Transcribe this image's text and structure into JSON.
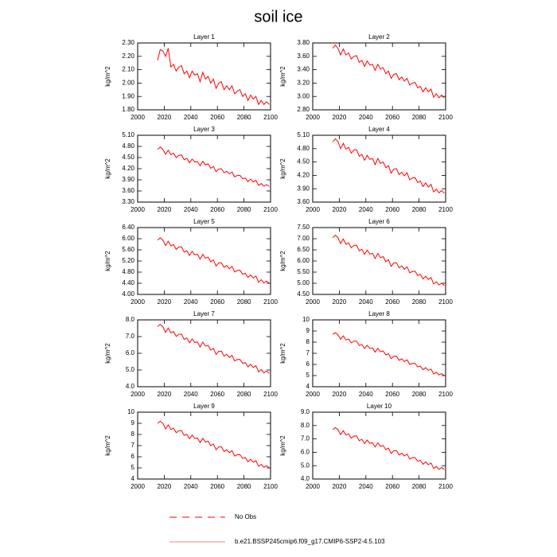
{
  "title": "soil ice",
  "legend": [
    {
      "name": "No Obs",
      "color": "#ff0000",
      "dash": true
    },
    {
      "name": "b.e21.BSSP245cmip6.f09_g17.CMIP6-SSP2-4.5.103",
      "color": "#ff0000",
      "dash": false
    }
  ],
  "chart_data": [
    {
      "type": "line",
      "title": "Layer 1",
      "y_label": "kg/m^2",
      "color": "#ff0000",
      "x": [
        2015,
        2017,
        2019,
        2021,
        2023,
        2025,
        2027,
        2029,
        2031,
        2033,
        2035,
        2037,
        2039,
        2041,
        2043,
        2045,
        2047,
        2049,
        2051,
        2053,
        2055,
        2057,
        2059,
        2061,
        2063,
        2065,
        2067,
        2069,
        2071,
        2073,
        2075,
        2077,
        2079,
        2081,
        2083,
        2085,
        2087,
        2089,
        2091,
        2093,
        2095,
        2097,
        2099
      ],
      "values": [
        2.17,
        2.25,
        2.24,
        2.2,
        2.26,
        2.12,
        2.14,
        2.09,
        2.12,
        2.13,
        2.07,
        2.09,
        2.04,
        2.09,
        2.06,
        2.07,
        2.01,
        2.08,
        2.03,
        2.05,
        2.0,
        2.03,
        1.96,
        2.0,
        2.01,
        1.95,
        1.98,
        1.95,
        1.98,
        1.92,
        1.94,
        1.95,
        1.9,
        1.92,
        1.87,
        1.91,
        1.88,
        1.9,
        1.84,
        1.87,
        1.84,
        1.86,
        1.84
      ],
      "xlim": [
        2000,
        2100
      ],
      "xticks": [
        2000,
        2020,
        2040,
        2060,
        2080,
        2100
      ],
      "ylim": [
        1.8,
        2.3
      ],
      "yticks": [
        {
          "value": 1.8,
          "label": "1.80"
        },
        {
          "value": 1.9,
          "label": "1.90"
        },
        {
          "value": 2.0,
          "label": "2.00"
        },
        {
          "value": 2.1,
          "label": "2.10"
        },
        {
          "value": 2.2,
          "label": "2.20"
        },
        {
          "value": 2.3,
          "label": "2.30"
        }
      ]
    },
    {
      "type": "line",
      "title": "Layer 2",
      "y_label": "kg/m^2",
      "color": "#ff0000",
      "x": [
        2015,
        2017,
        2019,
        2021,
        2023,
        2025,
        2027,
        2029,
        2031,
        2033,
        2035,
        2037,
        2039,
        2041,
        2043,
        2045,
        2047,
        2049,
        2051,
        2053,
        2055,
        2057,
        2059,
        2061,
        2063,
        2065,
        2067,
        2069,
        2071,
        2073,
        2075,
        2077,
        2079,
        2081,
        2083,
        2085,
        2087,
        2089,
        2091,
        2093,
        2095,
        2097,
        2099
      ],
      "values": [
        3.72,
        3.77,
        3.72,
        3.62,
        3.71,
        3.62,
        3.65,
        3.56,
        3.6,
        3.61,
        3.51,
        3.54,
        3.45,
        3.53,
        3.47,
        3.48,
        3.39,
        3.48,
        3.41,
        3.43,
        3.34,
        3.38,
        3.27,
        3.33,
        3.34,
        3.25,
        3.29,
        3.23,
        3.27,
        3.17,
        3.2,
        3.21,
        3.13,
        3.15,
        3.07,
        3.13,
        3.07,
        3.11,
        2.99,
        3.04,
        2.98,
        3.02,
        2.98
      ],
      "xlim": [
        2000,
        2100
      ],
      "xticks": [
        2000,
        2020,
        2040,
        2060,
        2080,
        2100
      ],
      "ylim": [
        2.8,
        3.8
      ],
      "yticks": [
        {
          "value": 2.8,
          "label": "2.80"
        },
        {
          "value": 3.0,
          "label": "3.00"
        },
        {
          "value": 3.2,
          "label": "3.20"
        },
        {
          "value": 3.4,
          "label": "3.40"
        },
        {
          "value": 3.6,
          "label": "3.60"
        },
        {
          "value": 3.8,
          "label": "3.80"
        }
      ]
    },
    {
      "type": "line",
      "title": "Layer 3",
      "y_label": "kg/m^2",
      "color": "#ff0000",
      "x": [
        2015,
        2017,
        2019,
        2021,
        2023,
        2025,
        2027,
        2029,
        2031,
        2033,
        2035,
        2037,
        2039,
        2041,
        2043,
        2045,
        2047,
        2049,
        2051,
        2053,
        2055,
        2057,
        2059,
        2061,
        2063,
        2065,
        2067,
        2069,
        2071,
        2073,
        2075,
        2077,
        2079,
        2081,
        2083,
        2085,
        2087,
        2089,
        2091,
        2093,
        2095,
        2097,
        2099
      ],
      "values": [
        4.72,
        4.78,
        4.72,
        4.59,
        4.7,
        4.58,
        4.62,
        4.5,
        4.56,
        4.57,
        4.44,
        4.48,
        4.36,
        4.46,
        4.38,
        4.39,
        4.28,
        4.4,
        4.3,
        4.33,
        4.21,
        4.26,
        4.12,
        4.19,
        4.2,
        4.09,
        4.13,
        4.06,
        4.11,
        3.98,
        4.02,
        4.02,
        3.93,
        3.95,
        3.85,
        3.92,
        3.84,
        3.89,
        3.75,
        3.8,
        3.73,
        3.77,
        3.72
      ],
      "xlim": [
        2000,
        2100
      ],
      "xticks": [
        2000,
        2020,
        2040,
        2060,
        2080,
        2100
      ],
      "ylim": [
        3.3,
        5.1
      ],
      "yticks": [
        {
          "value": 3.3,
          "label": "3.30"
        },
        {
          "value": 3.6,
          "label": "3.60"
        },
        {
          "value": 3.9,
          "label": "3.90"
        },
        {
          "value": 4.2,
          "label": "4.20"
        },
        {
          "value": 4.5,
          "label": "4.50"
        },
        {
          "value": 4.8,
          "label": "4.80"
        },
        {
          "value": 5.1,
          "label": "5.10"
        }
      ]
    },
    {
      "type": "line",
      "title": "Layer 4",
      "y_label": "kg/m^2",
      "color": "#ff0000",
      "x": [
        2015,
        2017,
        2019,
        2021,
        2023,
        2025,
        2027,
        2029,
        2031,
        2033,
        2035,
        2037,
        2039,
        2041,
        2043,
        2045,
        2047,
        2049,
        2051,
        2053,
        2055,
        2057,
        2059,
        2061,
        2063,
        2065,
        2067,
        2069,
        2071,
        2073,
        2075,
        2077,
        2079,
        2081,
        2083,
        2085,
        2087,
        2089,
        2091,
        2093,
        2095,
        2097,
        2099
      ],
      "values": [
        4.95,
        5.02,
        4.96,
        4.8,
        4.92,
        4.79,
        4.83,
        4.7,
        4.77,
        4.78,
        4.63,
        4.67,
        4.54,
        4.65,
        4.56,
        4.58,
        4.44,
        4.58,
        4.47,
        4.5,
        4.37,
        4.42,
        4.25,
        4.34,
        4.35,
        4.22,
        4.27,
        4.19,
        4.26,
        4.1,
        4.14,
        4.15,
        4.04,
        4.07,
        3.95,
        4.03,
        3.94,
        4.0,
        3.83,
        3.89,
        3.81,
        3.86,
        3.8
      ],
      "xlim": [
        2000,
        2100
      ],
      "xticks": [
        2000,
        2020,
        2040,
        2060,
        2080,
        2100
      ],
      "ylim": [
        3.6,
        5.1
      ],
      "yticks": [
        {
          "value": 3.6,
          "label": "3.60"
        },
        {
          "value": 3.9,
          "label": "3.90"
        },
        {
          "value": 4.2,
          "label": "4.20"
        },
        {
          "value": 4.5,
          "label": "4.50"
        },
        {
          "value": 4.8,
          "label": "4.80"
        },
        {
          "value": 5.1,
          "label": "5.10"
        }
      ]
    },
    {
      "type": "line",
      "title": "Layer 5",
      "y_label": "kg/m^2",
      "color": "#ff0000",
      "x": [
        2015,
        2017,
        2019,
        2021,
        2023,
        2025,
        2027,
        2029,
        2031,
        2033,
        2035,
        2037,
        2039,
        2041,
        2043,
        2045,
        2047,
        2049,
        2051,
        2053,
        2055,
        2057,
        2059,
        2061,
        2063,
        2065,
        2067,
        2069,
        2071,
        2073,
        2075,
        2077,
        2079,
        2081,
        2083,
        2085,
        2087,
        2089,
        2091,
        2093,
        2095,
        2097,
        2099
      ],
      "values": [
        5.95,
        6.03,
        5.95,
        5.75,
        5.91,
        5.74,
        5.79,
        5.62,
        5.7,
        5.71,
        5.52,
        5.57,
        5.4,
        5.55,
        5.42,
        5.44,
        5.27,
        5.44,
        5.3,
        5.34,
        5.17,
        5.24,
        5.02,
        5.13,
        5.14,
        4.97,
        5.04,
        4.92,
        5.01,
        4.81,
        4.86,
        4.87,
        4.72,
        4.76,
        4.61,
        4.7,
        4.59,
        4.66,
        4.44,
        4.53,
        4.41,
        4.48,
        4.4
      ],
      "xlim": [
        2000,
        2100
      ],
      "xticks": [
        2000,
        2020,
        2040,
        2060,
        2080,
        2100
      ],
      "ylim": [
        4.0,
        6.4
      ],
      "yticks": [
        {
          "value": 4.0,
          "label": "4.00"
        },
        {
          "value": 4.4,
          "label": "4.40"
        },
        {
          "value": 4.8,
          "label": "4.80"
        },
        {
          "value": 5.2,
          "label": "5.20"
        },
        {
          "value": 5.6,
          "label": "5.60"
        },
        {
          "value": 6.0,
          "label": "6.00"
        },
        {
          "value": 6.4,
          "label": "6.40"
        }
      ]
    },
    {
      "type": "line",
      "title": "Layer 6",
      "y_label": "kg/m^2",
      "color": "#ff0000",
      "x": [
        2015,
        2017,
        2019,
        2021,
        2023,
        2025,
        2027,
        2029,
        2031,
        2033,
        2035,
        2037,
        2039,
        2041,
        2043,
        2045,
        2047,
        2049,
        2051,
        2053,
        2055,
        2057,
        2059,
        2061,
        2063,
        2065,
        2067,
        2069,
        2071,
        2073,
        2075,
        2077,
        2079,
        2081,
        2083,
        2085,
        2087,
        2089,
        2091,
        2093,
        2095,
        2097,
        2099
      ],
      "values": [
        7.05,
        7.16,
        7.05,
        6.78,
        6.99,
        6.75,
        6.82,
        6.59,
        6.7,
        6.71,
        6.46,
        6.53,
        6.3,
        6.49,
        6.31,
        6.34,
        6.11,
        6.34,
        6.15,
        6.2,
        5.97,
        6.06,
        5.76,
        5.91,
        5.92,
        5.69,
        5.78,
        5.63,
        5.74,
        5.47,
        5.53,
        5.54,
        5.35,
        5.4,
        5.19,
        5.32,
        5.17,
        5.26,
        4.97,
        5.07,
        4.92,
        5.01,
        4.9
      ],
      "xlim": [
        2000,
        2100
      ],
      "xticks": [
        2000,
        2020,
        2040,
        2060,
        2080,
        2100
      ],
      "ylim": [
        4.5,
        7.5
      ],
      "yticks": [
        {
          "value": 4.5,
          "label": "4.50"
        },
        {
          "value": 5.0,
          "label": "5.00"
        },
        {
          "value": 5.5,
          "label": "5.50"
        },
        {
          "value": 6.0,
          "label": "6.00"
        },
        {
          "value": 6.5,
          "label": "6.50"
        },
        {
          "value": 7.0,
          "label": "7.00"
        },
        {
          "value": 7.5,
          "label": "7.50"
        }
      ]
    },
    {
      "type": "line",
      "title": "Layer 7",
      "y_label": "kg/m^2",
      "color": "#ff0000",
      "x": [
        2015,
        2017,
        2019,
        2021,
        2023,
        2025,
        2027,
        2029,
        2031,
        2033,
        2035,
        2037,
        2039,
        2041,
        2043,
        2045,
        2047,
        2049,
        2051,
        2053,
        2055,
        2057,
        2059,
        2061,
        2063,
        2065,
        2067,
        2069,
        2071,
        2073,
        2075,
        2077,
        2079,
        2081,
        2083,
        2085,
        2087,
        2089,
        2091,
        2093,
        2095,
        2097,
        2099
      ],
      "values": [
        7.6,
        7.73,
        7.59,
        7.25,
        7.51,
        7.22,
        7.3,
        7.01,
        7.14,
        7.15,
        6.83,
        6.92,
        6.63,
        6.86,
        6.64,
        6.68,
        6.38,
        6.67,
        6.43,
        6.48,
        6.19,
        6.3,
        5.93,
        6.12,
        6.13,
        5.83,
        5.94,
        5.75,
        5.88,
        5.54,
        5.63,
        5.63,
        5.39,
        5.45,
        5.18,
        5.34,
        5.15,
        5.26,
        4.89,
        5.03,
        4.83,
        4.94,
        4.8
      ],
      "xlim": [
        2000,
        2100
      ],
      "xticks": [
        2000,
        2020,
        2040,
        2060,
        2080,
        2100
      ],
      "ylim": [
        4.0,
        8.0
      ],
      "yticks": [
        {
          "value": 4.0,
          "label": "4.0"
        },
        {
          "value": 5.0,
          "label": "5.0"
        },
        {
          "value": 6.0,
          "label": "6.0"
        },
        {
          "value": 7.0,
          "label": "7.0"
        },
        {
          "value": 8.0,
          "label": "8.0"
        }
      ]
    },
    {
      "type": "line",
      "title": "Layer 8",
      "y_label": "kg/m^2",
      "color": "#ff0000",
      "x": [
        2015,
        2017,
        2019,
        2021,
        2023,
        2025,
        2027,
        2029,
        2031,
        2033,
        2035,
        2037,
        2039,
        2041,
        2043,
        2045,
        2047,
        2049,
        2051,
        2053,
        2055,
        2057,
        2059,
        2061,
        2063,
        2065,
        2067,
        2069,
        2071,
        2073,
        2075,
        2077,
        2079,
        2081,
        2083,
        2085,
        2087,
        2089,
        2091,
        2093,
        2095,
        2097,
        2099
      ],
      "values": [
        8.7,
        8.85,
        8.67,
        8.26,
        8.56,
        8.2,
        8.29,
        7.93,
        8.09,
        8.09,
        7.7,
        7.79,
        7.43,
        7.71,
        7.44,
        7.47,
        7.11,
        7.44,
        7.14,
        7.21,
        6.85,
        6.97,
        6.52,
        6.73,
        6.74,
        6.38,
        6.5,
        6.26,
        6.41,
        6.0,
        6.09,
        6.09,
        5.79,
        5.85,
        5.53,
        5.71,
        5.47,
        5.59,
        5.14,
        5.29,
        5.06,
        5.18,
        5.0
      ],
      "xlim": [
        2000,
        2100
      ],
      "xticks": [
        2000,
        2020,
        2040,
        2060,
        2080,
        2100
      ],
      "ylim": [
        4,
        10
      ],
      "yticks": [
        4,
        5,
        6,
        7,
        8,
        9,
        10
      ]
    },
    {
      "type": "line",
      "title": "Layer 9",
      "y_label": "kg/m^2",
      "color": "#ff0000",
      "x": [
        2015,
        2017,
        2019,
        2021,
        2023,
        2025,
        2027,
        2029,
        2031,
        2033,
        2035,
        2037,
        2039,
        2041,
        2043,
        2045,
        2047,
        2049,
        2051,
        2053,
        2055,
        2057,
        2059,
        2061,
        2063,
        2065,
        2067,
        2069,
        2071,
        2073,
        2075,
        2077,
        2079,
        2081,
        2083,
        2085,
        2087,
        2089,
        2091,
        2093,
        2095,
        2097,
        2099
      ],
      "values": [
        9.0,
        9.19,
        8.99,
        8.5,
        8.86,
        8.45,
        8.57,
        8.16,
        8.34,
        8.35,
        7.91,
        8.02,
        7.61,
        7.94,
        7.63,
        7.68,
        7.27,
        7.66,
        7.32,
        7.4,
        6.99,
        7.14,
        6.63,
        6.88,
        6.89,
        6.48,
        6.63,
        6.36,
        6.54,
        6.06,
        6.18,
        6.19,
        5.85,
        5.93,
        5.55,
        5.77,
        5.5,
        5.65,
        5.14,
        5.32,
        5.05,
        5.2,
        5.0
      ],
      "xlim": [
        2000,
        2100
      ],
      "xticks": [
        2000,
        2020,
        2040,
        2060,
        2080,
        2100
      ],
      "ylim": [
        4,
        10
      ],
      "yticks": [
        4,
        5,
        6,
        7,
        8,
        9,
        10
      ]
    },
    {
      "type": "line",
      "title": "Layer 10",
      "y_label": "kg/m^2",
      "color": "#ff0000",
      "x": [
        2015,
        2017,
        2019,
        2021,
        2023,
        2025,
        2027,
        2029,
        2031,
        2033,
        2035,
        2037,
        2039,
        2041,
        2043,
        2045,
        2047,
        2049,
        2051,
        2053,
        2055,
        2057,
        2059,
        2061,
        2063,
        2065,
        2067,
        2069,
        2071,
        2073,
        2075,
        2077,
        2079,
        2081,
        2083,
        2085,
        2087,
        2089,
        2091,
        2093,
        2095,
        2097,
        2099
      ],
      "values": [
        7.7,
        7.85,
        7.7,
        7.32,
        7.61,
        7.29,
        7.38,
        7.06,
        7.21,
        7.23,
        6.87,
        6.97,
        6.65,
        6.91,
        6.67,
        6.71,
        6.39,
        6.71,
        6.44,
        6.51,
        6.19,
        6.31,
        5.91,
        6.11,
        6.13,
        5.8,
        5.93,
        5.72,
        5.87,
        5.49,
        5.59,
        5.6,
        5.33,
        5.4,
        5.1,
        5.28,
        5.07,
        5.2,
        4.79,
        4.94,
        4.73,
        4.86,
        4.7
      ],
      "xlim": [
        2000,
        2100
      ],
      "xticks": [
        2000,
        2020,
        2040,
        2060,
        2080,
        2100
      ],
      "ylim": [
        4.0,
        9.0
      ],
      "yticks": [
        {
          "value": 4.0,
          "label": "4.0"
        },
        {
          "value": 5.0,
          "label": "5.0"
        },
        {
          "value": 6.0,
          "label": "6.0"
        },
        {
          "value": 7.0,
          "label": "7.0"
        },
        {
          "value": 8.0,
          "label": "8.0"
        },
        {
          "value": 9.0,
          "label": "9.0"
        }
      ]
    }
  ]
}
